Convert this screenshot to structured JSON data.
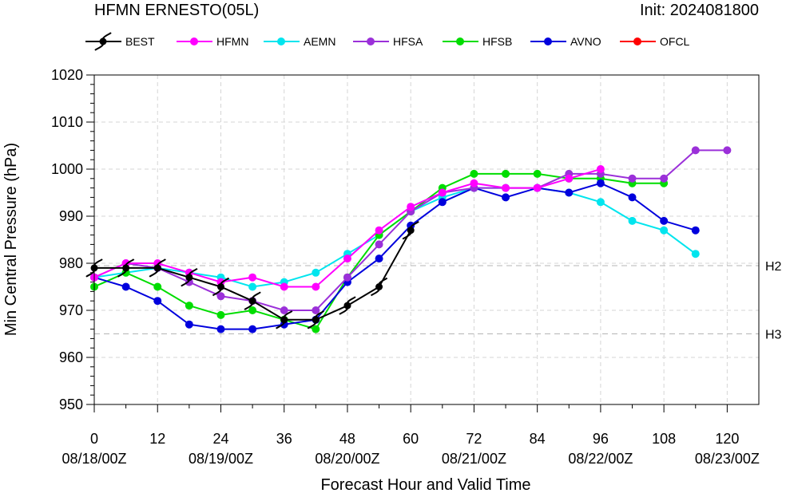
{
  "header": {
    "title": "HFMN ERNESTO(05L)",
    "init": "Init: 2024081800"
  },
  "chart_data": {
    "type": "line",
    "xlabel": "Forecast Hour and Valid Time",
    "ylabel": "Min Central Pressure (hPa)",
    "xlim": [
      0,
      126
    ],
    "ylim": [
      950,
      1020
    ],
    "xticks": [
      0,
      12,
      24,
      36,
      48,
      60,
      72,
      84,
      96,
      108,
      120
    ],
    "yticks": [
      950,
      960,
      970,
      980,
      990,
      1000,
      1010,
      1020
    ],
    "valid_time_labels": [
      {
        "x": 0,
        "text": "08/18/00Z"
      },
      {
        "x": 24,
        "text": "08/19/00Z"
      },
      {
        "x": 48,
        "text": "08/20/00Z"
      },
      {
        "x": 72,
        "text": "08/21/00Z"
      },
      {
        "x": 96,
        "text": "08/22/00Z"
      },
      {
        "x": 120,
        "text": "08/23/00Z"
      }
    ],
    "grid": true,
    "legend_position": "top",
    "reference_lines": [
      {
        "label": "H2",
        "value": 979.5
      },
      {
        "label": "H3",
        "value": 965
      }
    ],
    "series": [
      {
        "name": "BEST",
        "color": "#000000",
        "marker": "hurricane-symbol",
        "x": [
          0,
          6,
          12,
          18,
          24,
          30,
          36,
          42,
          48,
          54,
          60
        ],
        "y": [
          979,
          979,
          979,
          977,
          975,
          972,
          968,
          968,
          971,
          975,
          987
        ]
      },
      {
        "name": "HFMN",
        "color": "#ff00ff",
        "marker": "circle",
        "x": [
          0,
          6,
          12,
          18,
          24,
          30,
          36,
          42,
          48,
          54,
          60,
          66,
          72,
          78,
          84,
          90,
          96
        ],
        "y": [
          977,
          980,
          980,
          978,
          976,
          977,
          975,
          975,
          981,
          987,
          992,
          995,
          997,
          996,
          996,
          998,
          1000
        ]
      },
      {
        "name": "AEMN",
        "color": "#00e5ee",
        "marker": "circle",
        "x": [
          0,
          6,
          12,
          18,
          24,
          30,
          36,
          42,
          48,
          54,
          60,
          66,
          72,
          78,
          84,
          90,
          96,
          102,
          108,
          114
        ],
        "y": [
          977,
          978,
          979,
          978,
          977,
          975,
          976,
          978,
          982,
          986,
          991,
          994,
          996,
          996,
          996,
          995,
          993,
          989,
          987,
          982
        ]
      },
      {
        "name": "HFSA",
        "color": "#9b30d9",
        "marker": "circle",
        "x": [
          0,
          6,
          12,
          18,
          24,
          30,
          36,
          42,
          48,
          54,
          60,
          66,
          72,
          78,
          84,
          90,
          96,
          102,
          108,
          114,
          120
        ],
        "y": [
          977,
          980,
          979,
          976,
          973,
          972,
          970,
          970,
          977,
          984,
          991,
          995,
          996,
          996,
          996,
          999,
          999,
          998,
          998,
          1004,
          1004
        ]
      },
      {
        "name": "HFSB",
        "color": "#00dd00",
        "marker": "circle",
        "x": [
          0,
          6,
          12,
          18,
          24,
          30,
          36,
          42,
          48,
          54,
          60,
          66,
          72,
          78,
          84,
          90,
          96,
          102,
          108
        ],
        "y": [
          975,
          978,
          975,
          971,
          969,
          970,
          968,
          966,
          977,
          986,
          991,
          996,
          999,
          999,
          999,
          998,
          998,
          997,
          997
        ]
      },
      {
        "name": "AVNO",
        "color": "#0000dd",
        "marker": "circle",
        "x": [
          0,
          6,
          12,
          18,
          24,
          30,
          36,
          42,
          48,
          54,
          60,
          66,
          72,
          78,
          84,
          90,
          96,
          102,
          108,
          114
        ],
        "y": [
          977,
          975,
          972,
          967,
          966,
          966,
          967,
          968,
          976,
          981,
          988,
          993,
          996,
          994,
          996,
          995,
          997,
          994,
          989,
          987
        ]
      },
      {
        "name": "OFCL",
        "color": "#ff0000",
        "marker": "circle",
        "x": [],
        "y": []
      }
    ]
  }
}
